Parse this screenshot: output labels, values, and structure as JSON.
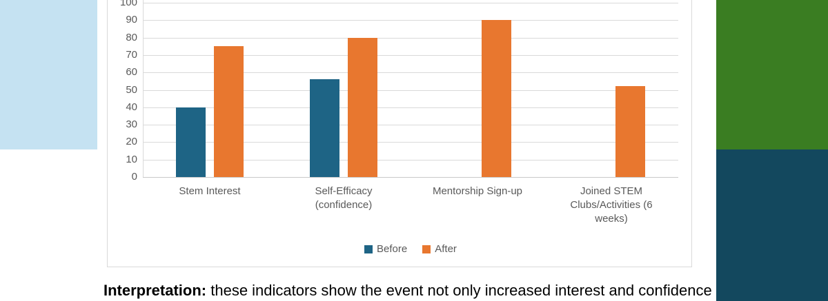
{
  "decor": {
    "left_block_color": "#C5E2F2",
    "top_right_block_color": "#3A7D22",
    "bottom_right_block_color": "#13485E"
  },
  "chart_data": {
    "type": "bar",
    "categories": [
      "Stem Interest",
      "Self-Efficacy (confidence)",
      "Mentorship Sign-up",
      "Joined STEM Clubs/Activities (6 weeks)"
    ],
    "series": [
      {
        "name": "Before",
        "color": "#1E6485",
        "values": [
          40,
          56,
          null,
          null
        ]
      },
      {
        "name": "After",
        "color": "#E8772F",
        "values": [
          75,
          80,
          90,
          52
        ]
      }
    ],
    "ylim": [
      0,
      100
    ],
    "ytick_step": 10,
    "grid": true,
    "legend_position": "bottom",
    "gridline_color": "#D9D9D9",
    "zero_line_color": "#C9C9C9",
    "axis_text_color": "#595959"
  },
  "interpretation": {
    "label": "Interpretation:",
    "text": " these indicators show the event not only increased interest and confidence"
  }
}
